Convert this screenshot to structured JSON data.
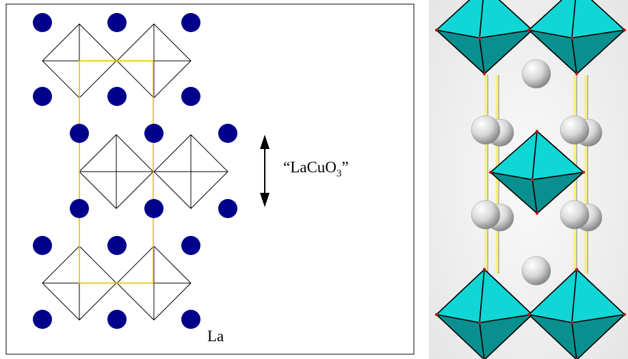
{
  "left_panel": {
    "structure_label_main": "“LaCuO",
    "structure_label_sub": "3",
    "structure_label_end": "”",
    "atom_label": "La",
    "colors": {
      "atom": "#00008b",
      "octahedron_edge": "#000000",
      "unit_cell": "#e8c200",
      "frame": "#000000"
    }
  },
  "right_panel": {
    "colors": {
      "octahedron_light": "#10d6d6",
      "octahedron_dark": "#0a8f8f",
      "atom_sphere": "#e2e2e2",
      "bond": "#f5f07a",
      "background": "#f0f0f0"
    }
  }
}
